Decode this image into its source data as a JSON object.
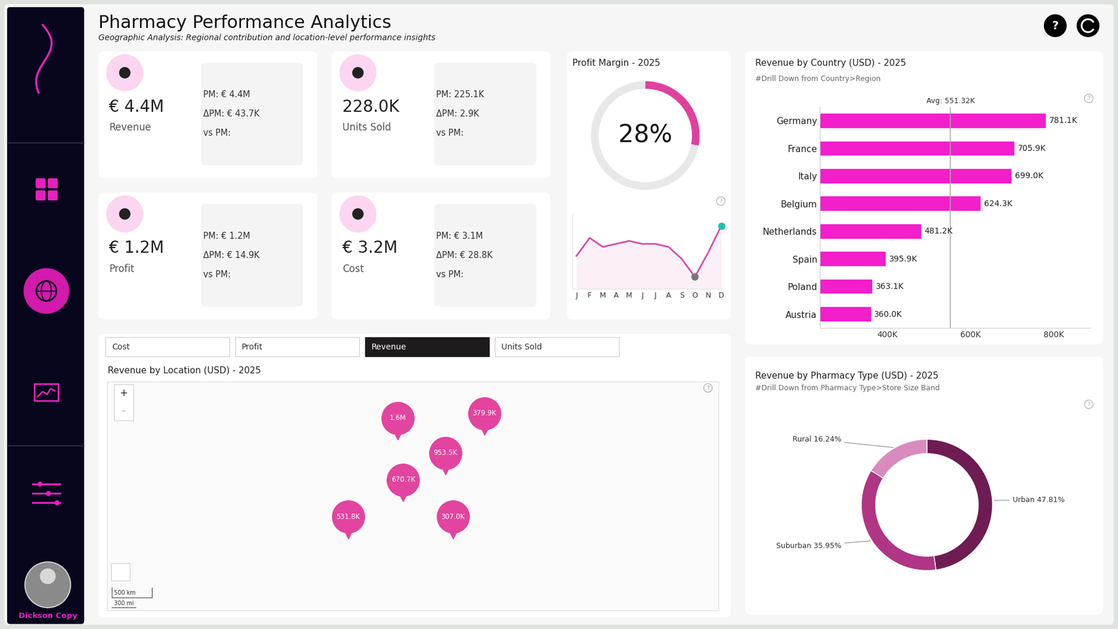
{
  "header": {
    "title": "Pharmacy Performance Analytics",
    "subtitle": "Geographic Analysis: Regional contribution and location-level performance insights",
    "help_icon": "?"
  },
  "user": "Dickson Copy",
  "kpis": [
    {
      "value": "€ 4.4M",
      "label": "Revenue",
      "lines": [
        "PM: € 4.4M",
        "ΔPM: € 43.7K",
        "vs PM:"
      ]
    },
    {
      "value": "228.0K",
      "label": "Units Sold",
      "lines": [
        "PM: 225.1K",
        "ΔPM: 2.9K",
        "vs PM:"
      ]
    },
    {
      "value": "€ 1.2M",
      "label": "Profit",
      "lines": [
        "PM: € 1.2M",
        "ΔPM: € 14.9K",
        "vs PM:"
      ]
    },
    {
      "value": "€ 3.2M",
      "label": "Cost",
      "lines": [
        "PM: € 3.1M",
        "ΔPM: € 28.8K",
        "vs PM:"
      ]
    }
  ],
  "measure_buttons": {
    "options": [
      "Cost",
      "Profit",
      "Revenue",
      "Units Sold"
    ],
    "selected": "Revenue"
  },
  "chart_data": [
    {
      "type": "gauge",
      "title": "Profit Margin - 2025",
      "values": [
        28
      ],
      "value_labels": [
        "28%"
      ],
      "ylim": [
        0,
        100
      ],
      "tick_labels": false,
      "color": "#e0409d"
    },
    {
      "type": "line",
      "categories": [
        "J",
        "F",
        "M",
        "A",
        "M",
        "J",
        "J",
        "A",
        "S",
        "O",
        "N",
        "D"
      ],
      "values": [
        27.6,
        28.2,
        27.9,
        28.0,
        28.1,
        28.0,
        28.0,
        27.9,
        27.5,
        26.9,
        27.7,
        28.6
      ],
      "ylim": [
        26.5,
        29.0
      ],
      "tick_labels": "x",
      "color": "#d64aa6"
    },
    {
      "type": "bar",
      "orientation": "horizontal",
      "title": "Revenue by Country (USD) - 2025",
      "subtitle": "#Drill Down from Country>Region",
      "categories": [
        "Germany",
        "France",
        "Italy",
        "Belgium",
        "Netherlands",
        "Spain",
        "Poland",
        "Austria"
      ],
      "values": [
        781100,
        705900,
        699000,
        624300,
        481200,
        395900,
        363100,
        360000
      ],
      "value_labels": [
        "781.1K",
        "705.9K",
        "699.0K",
        "624.3K",
        "481.2K",
        "395.9K",
        "363.1K",
        "360.0K"
      ],
      "data_labels": true,
      "xlim": [
        237000,
        890000
      ],
      "xticks": [
        {
          "value": 400000,
          "label": "400K"
        },
        {
          "value": 600000,
          "label": "600K"
        },
        {
          "value": 800000,
          "label": "800K"
        }
      ],
      "color": "#f21fcb",
      "average": {
        "value": 551320,
        "label": "Avg: 551.32K"
      }
    },
    {
      "type": "map",
      "title": "Revenue by Location (USD) - 2025",
      "points": [
        {
          "label": "1.6M",
          "value": 1600000,
          "lon": 8.3,
          "lat": 55.7
        },
        {
          "label": "379.9K",
          "value": 379900,
          "lon": 18.2,
          "lat": 56.3
        },
        {
          "label": "953.5K",
          "value": 953500,
          "lon": 13.7,
          "lat": 51.3
        },
        {
          "label": "670.7K",
          "value": 670700,
          "lon": 8.9,
          "lat": 47.9
        },
        {
          "label": "531.8K",
          "value": 531800,
          "lon": 2.6,
          "lat": 43.2
        },
        {
          "label": "307.0K",
          "value": 307000,
          "lon": 14.6,
          "lat": 43.2
        }
      ],
      "xlim": [
        -25,
        45
      ],
      "ylim": [
        34,
        63
      ],
      "tick_labels": false,
      "color": "#e2449f",
      "zoom_buttons": [
        "+",
        "–"
      ],
      "scale_labels": [
        "500 km",
        "300 mi"
      ]
    },
    {
      "type": "donut",
      "title": "Revenue by Pharmacy Type (USD) - 2025",
      "subtitle": "#Drill Down from Pharmacy Type>Store Size Band",
      "categories": [
        "Urban",
        "Suburban",
        "Rural"
      ],
      "values": [
        47.81,
        35.95,
        16.24
      ],
      "value_labels": [
        "Urban 47.81%",
        "Suburban 35.95%",
        "Rural 16.24%"
      ],
      "colors": [
        "#6e1c52",
        "#b03585",
        "#d98bbd"
      ]
    }
  ]
}
